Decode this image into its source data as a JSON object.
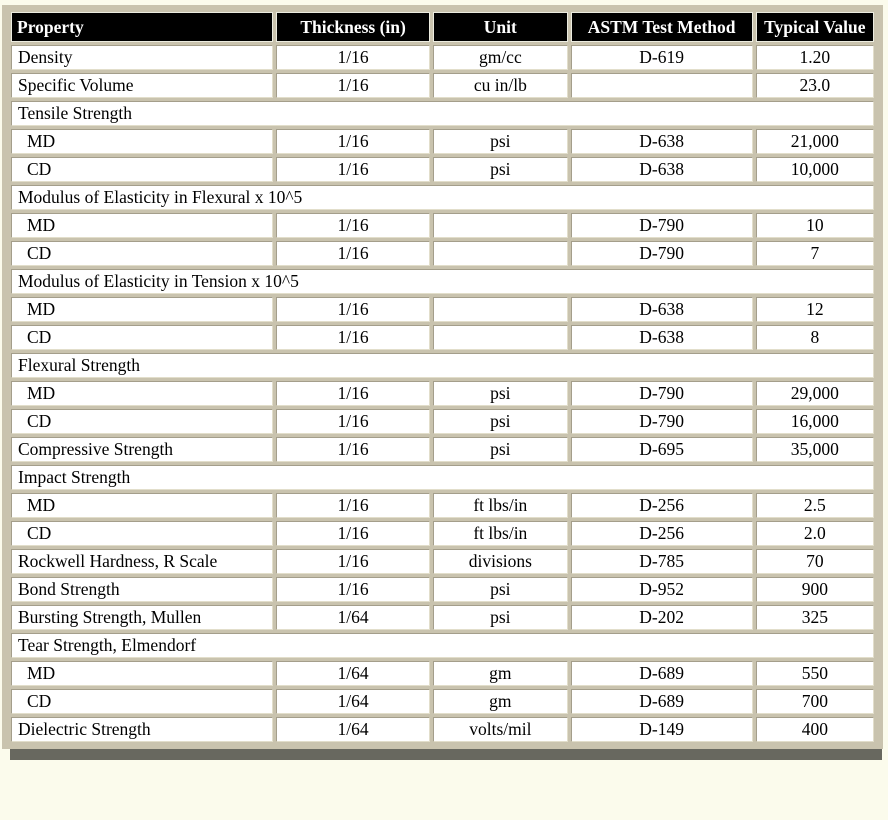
{
  "colors": {
    "page_bg": "#fbfbec",
    "frame": "#c9c3ae",
    "cell_bg": "#ffffff",
    "header_bg": "#000000",
    "header_text": "#ffffff",
    "grid_dark": "#a49e8b",
    "grid_light": "#e2decb",
    "shadow_bar": "#68685f",
    "text": "#000000"
  },
  "table": {
    "columns": [
      "Property",
      "Thickness (in)",
      "Unit",
      "ASTM Test Method",
      "Typical Value"
    ],
    "rows": [
      {
        "type": "data",
        "property": "Density",
        "thickness": "1/16",
        "unit": "gm/cc",
        "astm": "D-619",
        "value": "1.20"
      },
      {
        "type": "data",
        "property": "Specific Volume",
        "thickness": "1/16",
        "unit": "cu in/lb",
        "astm": "",
        "value": "23.0"
      },
      {
        "type": "section",
        "property": "Tensile Strength"
      },
      {
        "type": "data",
        "indent": true,
        "property": "MD",
        "thickness": "1/16",
        "unit": "psi",
        "astm": "D-638",
        "value": "21,000"
      },
      {
        "type": "data",
        "indent": true,
        "property": "CD",
        "thickness": "1/16",
        "unit": "psi",
        "astm": "D-638",
        "value": "10,000"
      },
      {
        "type": "section",
        "property": "Modulus of Elasticity in Flexural x 10^5"
      },
      {
        "type": "data",
        "indent": true,
        "property": "MD",
        "thickness": "1/16",
        "unit": "",
        "astm": "D-790",
        "value": "10"
      },
      {
        "type": "data",
        "indent": true,
        "property": "CD",
        "thickness": "1/16",
        "unit": "",
        "astm": "D-790",
        "value": "7"
      },
      {
        "type": "section",
        "property": "Modulus of Elasticity in Tension x 10^5"
      },
      {
        "type": "data",
        "indent": true,
        "property": "MD",
        "thickness": "1/16",
        "unit": "",
        "astm": "D-638",
        "value": "12"
      },
      {
        "type": "data",
        "indent": true,
        "property": "CD",
        "thickness": "1/16",
        "unit": "",
        "astm": "D-638",
        "value": "8"
      },
      {
        "type": "section",
        "property": "Flexural Strength"
      },
      {
        "type": "data",
        "indent": true,
        "property": "MD",
        "thickness": "1/16",
        "unit": "psi",
        "astm": "D-790",
        "value": "29,000"
      },
      {
        "type": "data",
        "indent": true,
        "property": "CD",
        "thickness": "1/16",
        "unit": "psi",
        "astm": "D-790",
        "value": "16,000"
      },
      {
        "type": "data",
        "property": "Compressive Strength",
        "thickness": "1/16",
        "unit": "psi",
        "astm": "D-695",
        "value": "35,000"
      },
      {
        "type": "section",
        "property": "Impact Strength"
      },
      {
        "type": "data",
        "indent": true,
        "property": "MD",
        "thickness": "1/16",
        "unit": "ft lbs/in",
        "astm": "D-256",
        "value": "2.5"
      },
      {
        "type": "data",
        "indent": true,
        "property": "CD",
        "thickness": "1/16",
        "unit": "ft lbs/in",
        "astm": "D-256",
        "value": "2.0"
      },
      {
        "type": "data",
        "property": "Rockwell Hardness, R Scale",
        "thickness": "1/16",
        "unit": "divisions",
        "astm": "D-785",
        "value": "70"
      },
      {
        "type": "data",
        "property": "Bond Strength",
        "thickness": "1/16",
        "unit": "psi",
        "astm": "D-952",
        "value": "900"
      },
      {
        "type": "data",
        "property": "Bursting Strength, Mullen",
        "thickness": "1/64",
        "unit": "psi",
        "astm": "D-202",
        "value": "325"
      },
      {
        "type": "section",
        "property": "Tear Strength, Elmendorf"
      },
      {
        "type": "data",
        "indent": true,
        "property": "MD",
        "thickness": "1/64",
        "unit": "gm",
        "astm": "D-689",
        "value": "550"
      },
      {
        "type": "data",
        "indent": true,
        "property": "CD",
        "thickness": "1/64",
        "unit": "gm",
        "astm": "D-689",
        "value": "700"
      },
      {
        "type": "data",
        "property": "Dielectric Strength",
        "thickness": "1/64",
        "unit": "volts/mil",
        "astm": "D-149",
        "value": "400"
      }
    ]
  }
}
